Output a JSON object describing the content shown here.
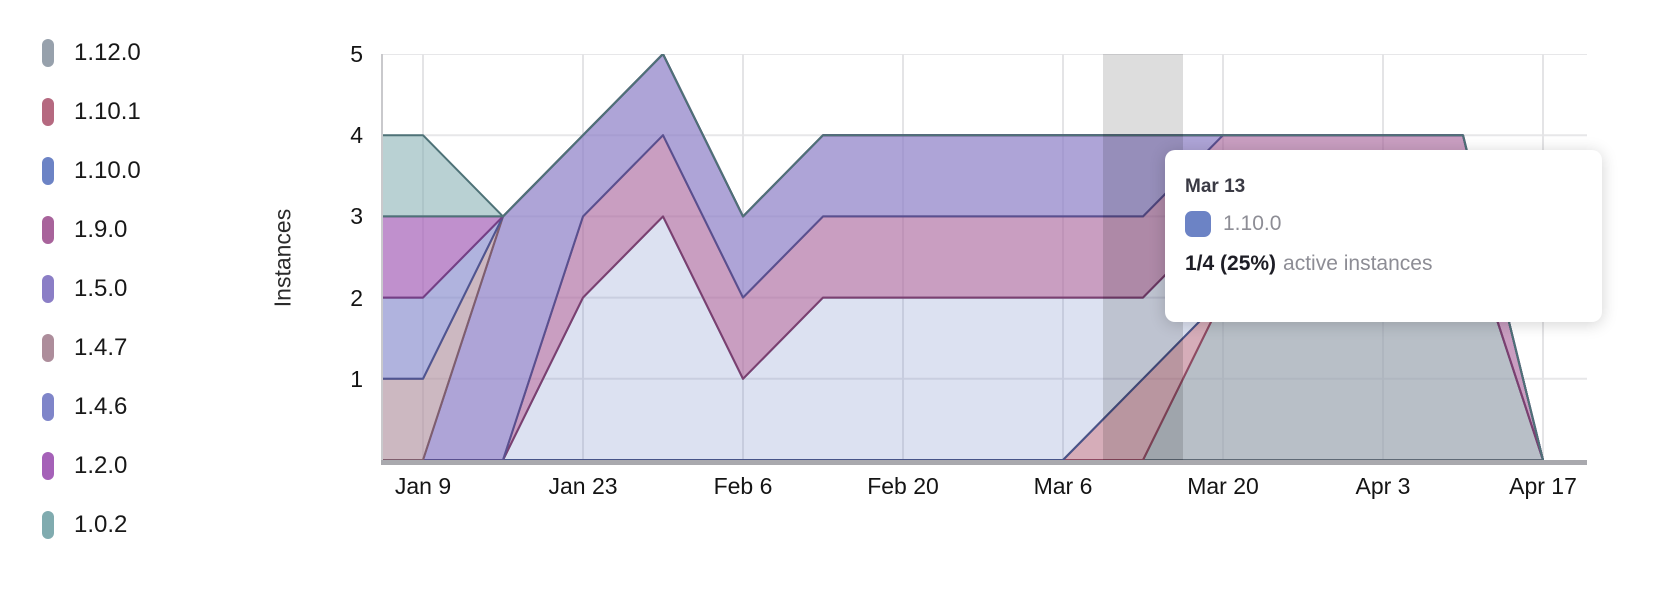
{
  "legend": {
    "items": [
      {
        "label": "1.12.0",
        "color": "#97a1ac"
      },
      {
        "label": "1.10.1",
        "color": "#b56980"
      },
      {
        "label": "1.10.0",
        "color": "#6c83c5"
      },
      {
        "label": "1.9.0",
        "color": "#a8639b"
      },
      {
        "label": "1.5.0",
        "color": "#8b7ec6"
      },
      {
        "label": "1.4.7",
        "color": "#ad8d9b"
      },
      {
        "label": "1.4.6",
        "color": "#7f85c9"
      },
      {
        "label": "1.2.0",
        "color": "#a561b8"
      },
      {
        "label": "1.0.2",
        "color": "#80abaf"
      }
    ]
  },
  "y_axis": {
    "label": "Instances",
    "ticks": [
      5,
      4,
      3,
      2,
      1
    ]
  },
  "x_axis": {
    "ticks": [
      "Jan 9",
      "Jan 23",
      "Feb 6",
      "Feb 20",
      "Mar 6",
      "Mar 20",
      "Apr 3",
      "Apr 17"
    ]
  },
  "tooltip": {
    "date": "Mar 13",
    "series": "1.10.0",
    "swatch_color": "#6c83c5",
    "value": "1/4 (25%)",
    "suffix": "active instances"
  },
  "chart_data": {
    "type": "area",
    "stacked": true,
    "title": "",
    "xlabel": "",
    "ylabel": "Instances",
    "ylim": [
      0,
      5
    ],
    "grid": true,
    "legend_position": "left",
    "highlight_x": "Mar 13",
    "x": [
      "Jan 9",
      "Jan 16",
      "Jan 23",
      "Jan 30",
      "Feb 6",
      "Feb 13",
      "Feb 20",
      "Feb 27",
      "Mar 6",
      "Mar 13",
      "Mar 20",
      "Mar 27",
      "Apr 3",
      "Apr 10",
      "Apr 17"
    ],
    "series": [
      {
        "name": "1.12.0",
        "color": "#97a1ac",
        "line": "#5f6a76",
        "fill_alpha": 0.68,
        "values": [
          0,
          0,
          0,
          0,
          0,
          0,
          0,
          0,
          0,
          0,
          2,
          3,
          3,
          3,
          0
        ]
      },
      {
        "name": "1.10.1",
        "color": "#b56980",
        "line": "#8f4a62",
        "fill_alpha": 0.55,
        "values": [
          0,
          0,
          0,
          0,
          0,
          0,
          0,
          0,
          0,
          1,
          0,
          0,
          0,
          0,
          0
        ]
      },
      {
        "name": "1.10.0",
        "color": "#6c83c5",
        "line": "#475489",
        "fill_alpha": 0.24,
        "values": [
          0,
          0,
          2,
          3,
          1,
          2,
          2,
          2,
          2,
          1,
          1,
          0,
          0,
          0,
          0
        ]
      },
      {
        "name": "1.9.0",
        "color": "#a8639b",
        "line": "#7b4070",
        "fill_alpha": 0.62,
        "values": [
          0,
          0,
          1,
          1,
          1,
          1,
          1,
          1,
          1,
          1,
          1,
          1,
          1,
          1,
          0
        ]
      },
      {
        "name": "1.5.0",
        "color": "#8b7ec6",
        "line": "#59508f",
        "fill_alpha": 0.7,
        "values": [
          0,
          3,
          1,
          1,
          1,
          1,
          1,
          1,
          1,
          1,
          0,
          0,
          0,
          0,
          0
        ]
      },
      {
        "name": "1.4.7",
        "color": "#ad8d9b",
        "line": "#7f5e6e",
        "fill_alpha": 0.62,
        "values": [
          1,
          0,
          0,
          0,
          0,
          0,
          0,
          0,
          0,
          0,
          0,
          0,
          0,
          0,
          0
        ]
      },
      {
        "name": "1.4.6",
        "color": "#7f85c9",
        "line": "#4f5591",
        "fill_alpha": 0.62,
        "values": [
          1,
          0,
          0,
          0,
          0,
          0,
          0,
          0,
          0,
          0,
          0,
          0,
          0,
          0,
          0
        ]
      },
      {
        "name": "1.2.0",
        "color": "#a561b8",
        "line": "#753f85",
        "fill_alpha": 0.7,
        "values": [
          1,
          0,
          0,
          0,
          0,
          0,
          0,
          0,
          0,
          0,
          0,
          0,
          0,
          0,
          0
        ]
      },
      {
        "name": "1.0.2",
        "color": "#80abaf",
        "line": "#4e7277",
        "fill_alpha": 0.55,
        "values": [
          1,
          0,
          0,
          0,
          0,
          0,
          0,
          0,
          0,
          0,
          0,
          0,
          0,
          0,
          0
        ]
      }
    ]
  }
}
